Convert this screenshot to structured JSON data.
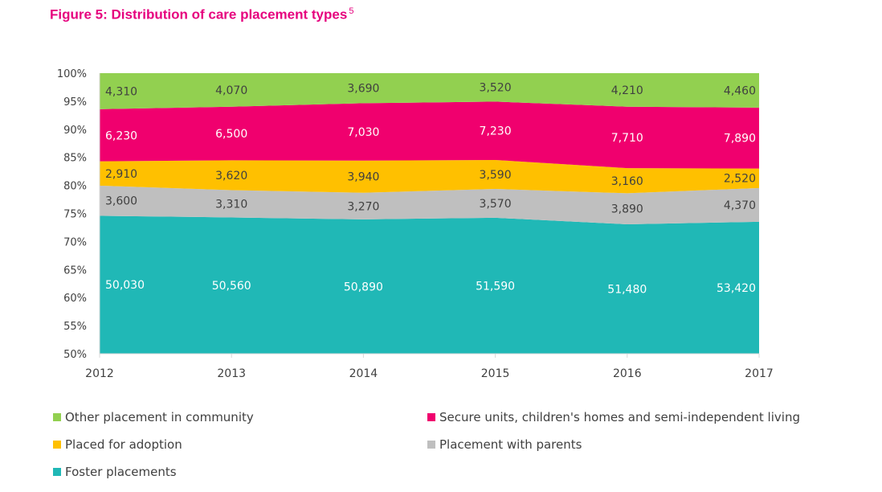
{
  "title": "Figure 5: Distribution of care placement types",
  "title_sup": "5",
  "colors": {
    "title": "#e6007e",
    "foster": "#20b8b6",
    "parents": "#bfbfbf",
    "adoption": "#ffc000",
    "secure": "#f0006e",
    "other": "#92d050",
    "axis_text": "#404040"
  },
  "chart_data": {
    "type": "area",
    "stacking": "percent",
    "title": "Figure 5: Distribution of care placement types",
    "x": [
      "2012",
      "2013",
      "2014",
      "2015",
      "2016",
      "2017"
    ],
    "y_ticks": [
      "50%",
      "55%",
      "60%",
      "65%",
      "70%",
      "75%",
      "80%",
      "85%",
      "90%",
      "95%",
      "100%"
    ],
    "ylim": [
      50,
      100
    ],
    "grid": false,
    "legend_position": "bottom",
    "series": [
      {
        "name": "Foster placements",
        "values": [
          50030,
          50560,
          50890,
          51590,
          51480,
          53420
        ]
      },
      {
        "name": "Placement with parents",
        "values": [
          3600,
          3310,
          3270,
          3570,
          3890,
          4370
        ]
      },
      {
        "name": "Placed for adoption",
        "values": [
          2910,
          3620,
          3940,
          3590,
          3160,
          2520
        ]
      },
      {
        "name": "Secure units, children's homes and semi-independent living",
        "values": [
          6230,
          6500,
          7030,
          7230,
          7710,
          7890
        ]
      },
      {
        "name": "Other placement in community",
        "values": [
          4310,
          4070,
          3690,
          3520,
          4210,
          4460
        ]
      }
    ],
    "data_labels": [
      [
        "50,030",
        "50,560",
        "50,890",
        "51,590",
        "51,480",
        "53,420"
      ],
      [
        "3,600",
        "3,310",
        "3,270",
        "3,570",
        "3,890",
        "4,370"
      ],
      [
        "2,910",
        "3,620",
        "3,940",
        "3,590",
        "3,160",
        "2,520"
      ],
      [
        "6,230",
        "6,500",
        "7,030",
        "7,230",
        "7,710",
        "7,890"
      ],
      [
        "4,310",
        "4,070",
        "3,690",
        "3,520",
        "4,210",
        "4,460"
      ]
    ]
  },
  "legend": [
    {
      "label": "Other placement in community",
      "color": "#92d050"
    },
    {
      "label": "Secure units, children's homes and semi-independent living",
      "color": "#f0006e"
    },
    {
      "label": "Placed for adoption",
      "color": "#ffc000"
    },
    {
      "label": "Placement with parents",
      "color": "#bfbfbf"
    },
    {
      "label": "Foster placements",
      "color": "#20b8b6"
    }
  ]
}
